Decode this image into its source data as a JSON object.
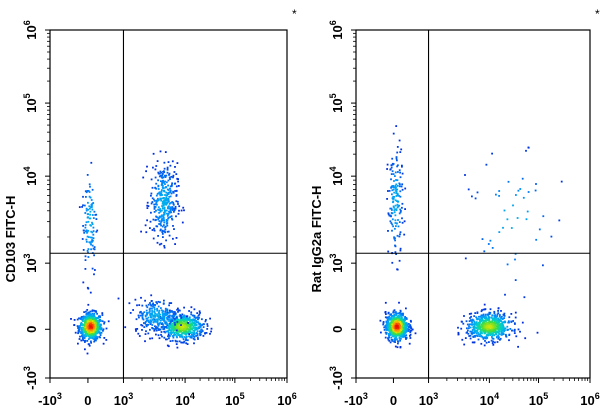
{
  "chart_data": [
    {
      "type": "scatter",
      "subtype": "flow-cytometry-density-dot-plot",
      "title": "",
      "xlabel": "",
      "ylabel": "CD103 FITC-H",
      "corner_mark": "*",
      "x_scale": "biexponential",
      "y_scale": "biexponential",
      "xlim": [
        -1000,
        1000000
      ],
      "ylim": [
        -1000,
        1000000
      ],
      "x_ticks": [
        {
          "base": "-10",
          "exp": "3",
          "value": -1000
        },
        {
          "base": "0",
          "exp": "",
          "value": 0
        },
        {
          "base": "10",
          "exp": "3",
          "value": 1000
        },
        {
          "base": "10",
          "exp": "4",
          "value": 10000
        },
        {
          "base": "10",
          "exp": "5",
          "value": 100000
        },
        {
          "base": "10",
          "exp": "6",
          "value": 1000000
        }
      ],
      "y_ticks": [
        {
          "base": "-10",
          "exp": "3",
          "value": -1000
        },
        {
          "base": "0",
          "exp": "",
          "value": 0
        },
        {
          "base": "10",
          "exp": "3",
          "value": 1000
        },
        {
          "base": "10",
          "exp": "4",
          "value": 10000
        },
        {
          "base": "10",
          "exp": "5",
          "value": 100000
        },
        {
          "base": "10",
          "exp": "6",
          "value": 1000000
        }
      ],
      "gate": {
        "x": 1000,
        "y": 1300
      },
      "grid": false,
      "populations": [
        {
          "name": "",
          "x_center": 80,
          "y_center": 40,
          "x_spread": 0.15,
          "y_spread": 0.12,
          "points": 700,
          "peak_density": "high"
        },
        {
          "name": "",
          "x_center": 9000,
          "y_center": 40,
          "x_spread": 0.28,
          "y_spread": 0.12,
          "points": 600,
          "peak_density": "medium"
        },
        {
          "name": "",
          "x_center": 4500,
          "y_center": 5000,
          "x_spread": 0.18,
          "y_spread": 0.35,
          "points": 350,
          "peak_density": "low"
        },
        {
          "name": "",
          "x_center": 50,
          "y_center": 3000,
          "x_spread": 0.1,
          "y_spread": 0.5,
          "points": 110,
          "peak_density": "low"
        },
        {
          "name": "",
          "x_center": 3500,
          "y_center": 200,
          "x_spread": 0.3,
          "y_spread": 0.15,
          "points": 250,
          "peak_density": "low"
        }
      ]
    },
    {
      "type": "scatter",
      "subtype": "flow-cytometry-density-dot-plot",
      "title": "",
      "xlabel": "",
      "ylabel": "Rat IgG2a FITC-H",
      "corner_mark": "*",
      "x_scale": "biexponential",
      "y_scale": "biexponential",
      "xlim": [
        -1000,
        1000000
      ],
      "ylim": [
        -1000,
        1000000
      ],
      "x_ticks": [
        {
          "base": "-10",
          "exp": "3",
          "value": -1000
        },
        {
          "base": "0",
          "exp": "",
          "value": 0
        },
        {
          "base": "10",
          "exp": "3",
          "value": 1000
        },
        {
          "base": "10",
          "exp": "4",
          "value": 10000
        },
        {
          "base": "10",
          "exp": "5",
          "value": 100000
        },
        {
          "base": "10",
          "exp": "6",
          "value": 1000000
        }
      ],
      "y_ticks": [
        {
          "base": "-10",
          "exp": "3",
          "value": -1000
        },
        {
          "base": "0",
          "exp": "",
          "value": 0
        },
        {
          "base": "10",
          "exp": "3",
          "value": 1000
        },
        {
          "base": "10",
          "exp": "4",
          "value": 10000
        },
        {
          "base": "10",
          "exp": "5",
          "value": 100000
        },
        {
          "base": "10",
          "exp": "6",
          "value": 1000000
        }
      ],
      "gate": {
        "x": 1000,
        "y": 1300
      },
      "grid": false,
      "populations": [
        {
          "name": "",
          "x_center": 100,
          "y_center": 40,
          "x_spread": 0.15,
          "y_spread": 0.12,
          "points": 750,
          "peak_density": "high"
        },
        {
          "name": "",
          "x_center": 10000,
          "y_center": 40,
          "x_spread": 0.3,
          "y_spread": 0.12,
          "points": 650,
          "peak_density": "medium"
        },
        {
          "name": "",
          "x_center": 60,
          "y_center": 5000,
          "x_spread": 0.1,
          "y_spread": 0.5,
          "points": 160,
          "peak_density": "low"
        },
        {
          "name": "",
          "x_center": 30000,
          "y_center": 3000,
          "x_spread": 0.6,
          "y_spread": 0.6,
          "points": 50,
          "peak_density": "low"
        }
      ]
    }
  ]
}
